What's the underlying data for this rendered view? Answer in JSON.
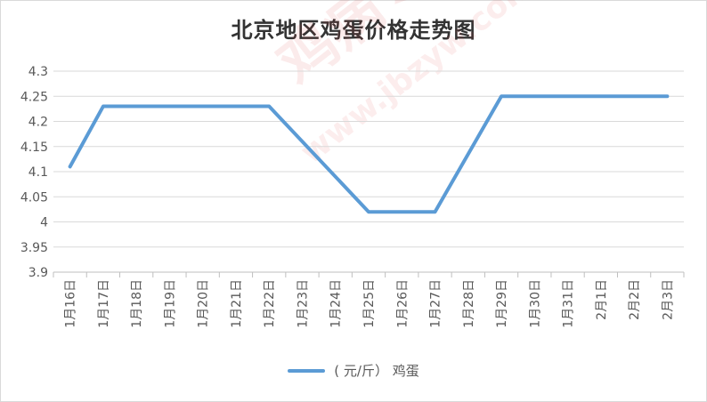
{
  "colors": {
    "series": "#5b9bd5",
    "grid": "#d9d9d9",
    "axis_text": "#595959"
  },
  "chart_data": {
    "type": "line",
    "title": "北京地区鸡蛋价格走势图",
    "categories": [
      "1月16日",
      "1月17日",
      "1月18日",
      "1月19日",
      "1月20日",
      "1月21日",
      "1月22日",
      "1月23日",
      "1月24日",
      "1月25日",
      "1月26日",
      "1月27日",
      "1月28日",
      "1月29日",
      "1月30日",
      "1月31日",
      "2月1日",
      "2月2日",
      "2月3日"
    ],
    "series": [
      {
        "name": "( 元/斤）  鸡蛋",
        "values": [
          4.11,
          4.23,
          4.23,
          4.23,
          4.23,
          4.23,
          4.23,
          null,
          null,
          4.02,
          4.02,
          4.02,
          null,
          4.25,
          4.25,
          4.25,
          4.25,
          4.25,
          4.25
        ]
      }
    ],
    "yticks": [
      "3.9",
      "3.95",
      "4",
      "4.05",
      "4.1",
      "4.15",
      "4.2",
      "4.25",
      "4.3"
    ],
    "ylim": [
      3.9,
      4.3
    ],
    "grid": true,
    "legend_position": "bottom"
  },
  "watermark": {
    "main": "鸡病专业网",
    "sub": "www.jbzyw.com"
  }
}
